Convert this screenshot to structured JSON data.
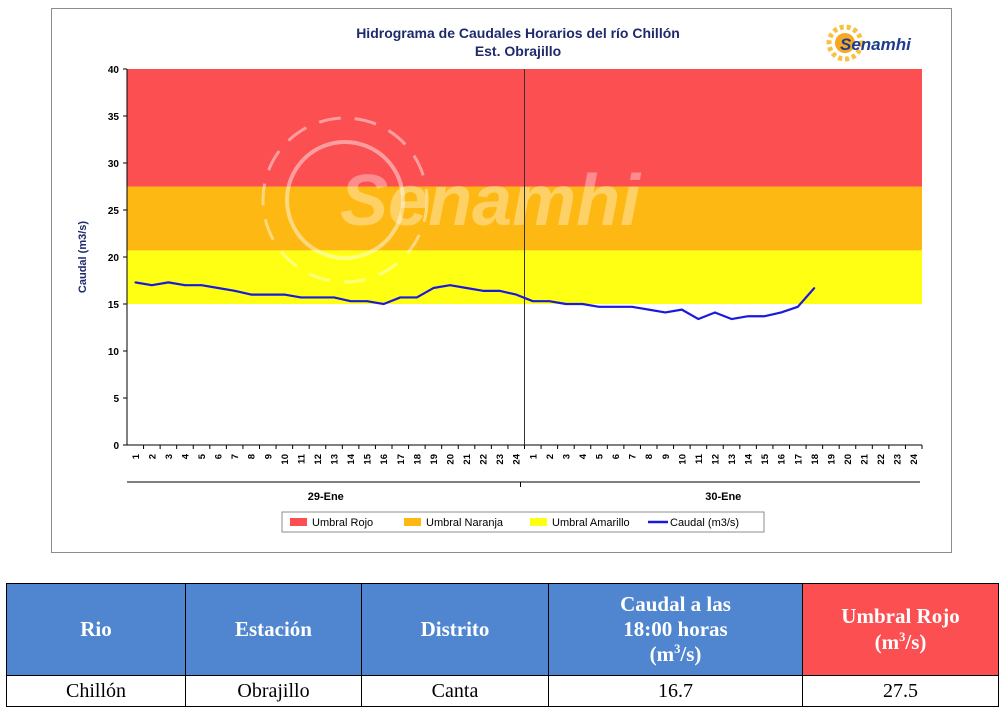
{
  "chart_data": {
    "type": "line",
    "title": "Hidrograma de Caudales Horarios del río Chillón",
    "subtitle": "Est. Obrajillo",
    "logo_text": "Senamhi",
    "watermark_text": "Senamhi",
    "ylabel": "Caudal  (m3/s)",
    "ylim": [
      0,
      40
    ],
    "yticks": [
      "0",
      "5",
      "10",
      "15",
      "20",
      "25",
      "30",
      "35",
      "40"
    ],
    "x_hour_labels": [
      "1",
      "2",
      "3",
      "4",
      "5",
      "6",
      "7",
      "8",
      "9",
      "10",
      "11",
      "12",
      "13",
      "14",
      "15",
      "16",
      "17",
      "18",
      "19",
      "20",
      "21",
      "22",
      "23",
      "24",
      "1",
      "2",
      "3",
      "4",
      "5",
      "6",
      "7",
      "8",
      "9",
      "10",
      "11",
      "12",
      "13",
      "14",
      "15",
      "16",
      "17",
      "18",
      "19",
      "20",
      "21",
      "22",
      "23",
      "24"
    ],
    "day_labels": [
      "29-Ene",
      "30-Ene"
    ],
    "thresholds": [
      {
        "name": "Umbral Rojo",
        "from": 27.5,
        "to": 40,
        "color": "#fb4f52"
      },
      {
        "name": "Umbral Naranja",
        "from": 20.7,
        "to": 27.5,
        "color": "#fdb814"
      },
      {
        "name": "Umbral Amarillo",
        "from": 15,
        "to": 20.7,
        "color": "#ffff14"
      }
    ],
    "series": [
      {
        "name": "Caudal (m3/s)",
        "color": "#1a1adb",
        "values": [
          17.3,
          17.0,
          17.3,
          17.0,
          17.0,
          16.7,
          16.4,
          16.0,
          16.0,
          16.0,
          15.7,
          15.7,
          15.7,
          15.3,
          15.3,
          15.0,
          15.7,
          15.7,
          16.7,
          17.0,
          16.7,
          16.4,
          16.4,
          16.0,
          15.3,
          15.3,
          15.0,
          15.0,
          14.7,
          14.7,
          14.7,
          14.4,
          14.1,
          14.4,
          13.4,
          14.1,
          13.4,
          13.7,
          13.7,
          14.1,
          14.7,
          16.7
        ]
      }
    ],
    "legend": [
      "Umbral Rojo",
      "Umbral Naranja",
      "Umbral Amarillo",
      "Caudal (m3/s)"
    ],
    "legend_position": "bottom",
    "grid": false
  },
  "table": {
    "headers": {
      "rio": "Rio",
      "estacion": "Estación",
      "distrito": "Distrito",
      "caudal_line1": "Caudal a las",
      "caudal_line2": "18:00 horas",
      "caudal_unit_pre": "(m",
      "caudal_unit_sup": "3",
      "caudal_unit_post": "/s)",
      "umbral_line1": "Umbral Rojo",
      "umbral_unit_pre": "(m",
      "umbral_unit_sup": "3",
      "umbral_unit_post": "/s)"
    },
    "row": {
      "rio": "Chillón",
      "estacion": "Obrajillo",
      "distrito": "Canta",
      "caudal": "16.7",
      "umbral": "27.5"
    },
    "colors": {
      "header": "#4f86cf",
      "header_red": "#fb4f52"
    }
  }
}
